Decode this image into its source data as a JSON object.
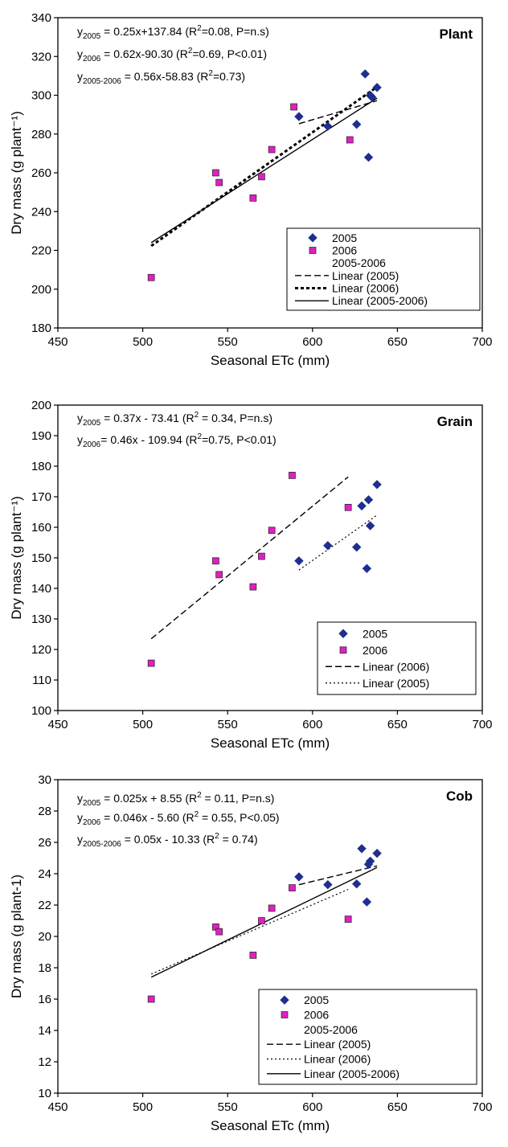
{
  "chart_data": [
    {
      "type": "scatter",
      "panel_label": "Plant",
      "xlabel": "Seasonal ETc (mm)",
      "ylabel": "Dry mass (g plant⁻¹)",
      "xlim": [
        450,
        700
      ],
      "ylim": [
        180,
        340
      ],
      "xticks": [
        "450",
        "500",
        "550",
        "600",
        "650",
        "700"
      ],
      "yticks": [
        "180",
        "200",
        "220",
        "240",
        "260",
        "280",
        "300",
        "320",
        "340"
      ],
      "equations": [
        {
          "y": "y",
          "sub": "2005",
          "rest": " = 0.25x+137.84  (R",
          "sup": "2",
          "tail": "=0.08, P=n.s)"
        },
        {
          "y": "y",
          "sub": "2006",
          "rest": " = 0.62x-90.30  (R",
          "sup": "2",
          "tail": "=0.69, P<0.01)"
        },
        {
          "y": "y",
          "sub": "2005-2006",
          "rest": " = 0.56x-58.83  (R",
          "sup": "2",
          "tail": "=0.73)"
        }
      ],
      "series": [
        {
          "name": "2005",
          "marker": "diamond",
          "color": "#1f2f8f",
          "points": [
            [
              592,
              289
            ],
            [
              609,
              284
            ],
            [
              626,
              285
            ],
            [
              631,
              311
            ],
            [
              633,
              268
            ],
            [
              634,
              300
            ],
            [
              635,
              299
            ],
            [
              638,
              304
            ]
          ]
        },
        {
          "name": "2006",
          "marker": "square",
          "color": "#e020c0",
          "points": [
            [
              505,
              206
            ],
            [
              543,
              260
            ],
            [
              545,
              255
            ],
            [
              565,
              247
            ],
            [
              570,
              258
            ],
            [
              576,
              272
            ],
            [
              589,
              294
            ],
            [
              622,
              277
            ]
          ]
        }
      ],
      "trendlines": [
        {
          "name": "Linear (2005)",
          "style": "dashed",
          "x": [
            592,
            638
          ],
          "y": [
            285.3,
            297.2
          ]
        },
        {
          "name": "Linear (2006)",
          "style": "dotted-bold",
          "x": [
            505,
            638
          ],
          "y": [
            222.3,
            304.3
          ]
        },
        {
          "name": "Linear (2005-2006)",
          "style": "solid",
          "x": [
            505,
            638
          ],
          "y": [
            224.0,
            298.5
          ]
        }
      ],
      "legend": {
        "placement": "bottom-right",
        "entries": [
          "2005",
          "2006",
          "2005-2006",
          "Linear (2005)",
          "Linear (2006)",
          "Linear (2005-2006)"
        ]
      }
    },
    {
      "type": "scatter",
      "panel_label": "Grain",
      "xlabel": "Seasonal ETc (mm)",
      "ylabel": "Dry mass (g plant⁻¹)",
      "xlim": [
        450,
        700
      ],
      "ylim": [
        100,
        200
      ],
      "xticks": [
        "450",
        "500",
        "550",
        "600",
        "650",
        "700"
      ],
      "yticks": [
        "100",
        "110",
        "120",
        "130",
        "140",
        "150",
        "160",
        "170",
        "180",
        "190",
        "200"
      ],
      "equations": [
        {
          "y": "y",
          "sub": "2005",
          "rest": " = 0.37x - 73.41  (R",
          "sup": "2",
          "tail": " = 0.34, P=n.s)"
        },
        {
          "y": "y",
          "sub": "2006",
          "rest": "= 0.46x - 109.94  (R",
          "sup": "2",
          "tail": "=0.75, P<0.01)"
        }
      ],
      "series": [
        {
          "name": "2005",
          "marker": "diamond",
          "color": "#1f2f8f",
          "points": [
            [
              592,
              149
            ],
            [
              609,
              154
            ],
            [
              626,
              153.5
            ],
            [
              629,
              167
            ],
            [
              632,
              146.5
            ],
            [
              633,
              169
            ],
            [
              634,
              160.5
            ],
            [
              638,
              174
            ]
          ]
        },
        {
          "name": "2006",
          "marker": "square",
          "color": "#e020c0",
          "points": [
            [
              505,
              115.5
            ],
            [
              543,
              149
            ],
            [
              545,
              144.5
            ],
            [
              565,
              140.5
            ],
            [
              570,
              150.5
            ],
            [
              576,
              159
            ],
            [
              588,
              177
            ],
            [
              621,
              166.5
            ]
          ]
        }
      ],
      "trendlines": [
        {
          "name": "Linear (2006)",
          "style": "dashed",
          "x": [
            505,
            621
          ],
          "y": [
            123.5,
            176.5
          ]
        },
        {
          "name": "Linear (2005)",
          "style": "dotted",
          "x": [
            592,
            638
          ],
          "y": [
            146.0,
            164.0
          ]
        }
      ],
      "legend": {
        "placement": "bottom-right",
        "entries": [
          "2005",
          "2006",
          "Linear (2006)",
          "Linear (2005)"
        ]
      }
    },
    {
      "type": "scatter",
      "panel_label": "Cob",
      "xlabel": "Seasonal ETc (mm)",
      "ylabel": "Dry mass (g plant-1)",
      "xlim": [
        450,
        700
      ],
      "ylim": [
        10,
        30
      ],
      "xticks": [
        "450",
        "500",
        "550",
        "600",
        "650",
        "700"
      ],
      "yticks": [
        "10",
        "12",
        "14",
        "16",
        "18",
        "20",
        "22",
        "24",
        "26",
        "28",
        "30"
      ],
      "equations": [
        {
          "y": "y",
          "sub": "2005",
          "rest": " = 0.025x + 8.55  (R",
          "sup": "2",
          "tail": " = 0.11, P=n.s)"
        },
        {
          "y": "y",
          "sub": "2006",
          "rest": " = 0.046x - 5.60  (R",
          "sup": "2",
          "tail": " = 0.55, P<0.05)"
        },
        {
          "y": "y",
          "sub": "2005-2006",
          "rest": " = 0.05x - 10.33  (R",
          "sup": "2",
          "tail": " = 0.74)"
        }
      ],
      "series": [
        {
          "name": "2005",
          "marker": "diamond",
          "color": "#1f2f8f",
          "points": [
            [
              592,
              23.8
            ],
            [
              609,
              23.3
            ],
            [
              626,
              23.35
            ],
            [
              629,
              25.6
            ],
            [
              632,
              22.2
            ],
            [
              633,
              24.6
            ],
            [
              634,
              24.8
            ],
            [
              638,
              25.3
            ]
          ]
        },
        {
          "name": "2006",
          "marker": "square",
          "color": "#e020c0",
          "points": [
            [
              505,
              16.0
            ],
            [
              543,
              20.6
            ],
            [
              545,
              20.3
            ],
            [
              565,
              18.8
            ],
            [
              570,
              21.0
            ],
            [
              576,
              21.8
            ],
            [
              588,
              23.1
            ],
            [
              621,
              21.1
            ]
          ]
        }
      ],
      "trendlines": [
        {
          "name": "Linear (2005)",
          "style": "dashed",
          "x": [
            592,
            638
          ],
          "y": [
            23.3,
            24.5
          ]
        },
        {
          "name": "Linear (2006)",
          "style": "dotted",
          "x": [
            505,
            621
          ],
          "y": [
            17.6,
            23.0
          ]
        },
        {
          "name": "Linear (2005-2006)",
          "style": "solid",
          "x": [
            505,
            638
          ],
          "y": [
            17.4,
            24.4
          ]
        }
      ],
      "legend": {
        "placement": "bottom-right",
        "entries": [
          "2005",
          "2006",
          "2005-2006",
          "Linear (2005)",
          "Linear (2006)",
          "Linear (2005-2006)"
        ]
      }
    }
  ]
}
